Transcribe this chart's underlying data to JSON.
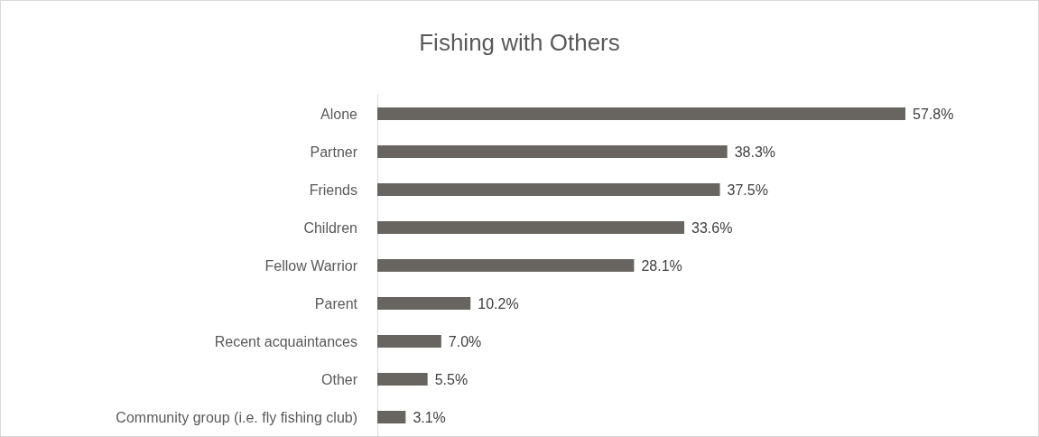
{
  "chart_data": {
    "type": "bar",
    "orientation": "horizontal",
    "title": "Fishing with Others",
    "categories": [
      "Alone",
      "Partner",
      "Friends",
      "Children",
      "Fellow Warrior",
      "Parent",
      "Recent acquaintances",
      "Other",
      "Community group (i.e. fly fishing club)"
    ],
    "values": [
      57.8,
      38.3,
      37.5,
      33.6,
      28.1,
      10.2,
      7.0,
      5.5,
      3.1
    ],
    "value_labels": [
      "57.8%",
      "38.3%",
      "37.5%",
      "33.6%",
      "28.1%",
      "10.2%",
      "7.0%",
      "5.5%",
      "3.1%"
    ],
    "color": "#686460"
  }
}
